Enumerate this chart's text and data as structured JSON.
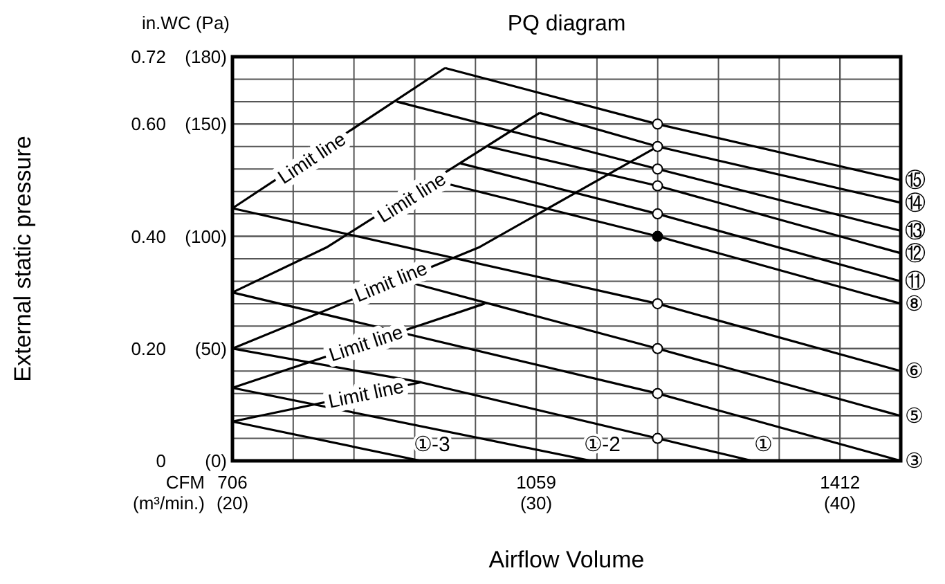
{
  "chart_data": {
    "type": "line",
    "title": "PQ diagram",
    "xlabel": "Airflow Volume",
    "ylabel": "External static pressure",
    "annotations": [
      "in.WC (Pa)",
      "CFM",
      "(m³/min.)",
      {
        "text": "Limit line",
        "x": 798,
        "y": 0.54
      },
      {
        "text": "Limit line",
        "x": 914,
        "y": 0.47
      },
      {
        "text": "Limit line",
        "x": 890,
        "y": 0.32
      },
      {
        "text": "Limit line",
        "x": 861,
        "y": 0.21
      },
      {
        "text": "Limit line",
        "x": 861,
        "y": 0.12
      }
    ],
    "xlim": [
      706,
      1482.6
    ],
    "ylim": [
      0,
      0.72
    ],
    "xticks": [
      706,
      1059,
      1412
    ],
    "x2lim": [
      20,
      42
    ],
    "x2ticks": [
      {
        "value": 20,
        "label": "(20)"
      },
      {
        "value": 22,
        "label": null
      },
      {
        "value": 24,
        "label": null
      },
      {
        "value": 26,
        "label": null
      },
      {
        "value": 28,
        "label": null
      },
      {
        "value": 30,
        "label": "(30)"
      },
      {
        "value": 32,
        "label": null
      },
      {
        "value": 34,
        "label": null
      },
      {
        "value": 36,
        "label": null
      },
      {
        "value": 38,
        "label": null
      },
      {
        "value": 40,
        "label": "(40)"
      },
      {
        "value": 42,
        "label": null
      }
    ],
    "yticks": [
      {
        "value": 0,
        "label": "0"
      },
      {
        "value": 0.04,
        "label": null
      },
      {
        "value": 0.08,
        "label": null
      },
      {
        "value": 0.12,
        "label": null
      },
      {
        "value": 0.16,
        "label": null
      },
      {
        "value": 0.2,
        "label": "0.20"
      },
      {
        "value": 0.24,
        "label": null
      },
      {
        "value": 0.28,
        "label": null
      },
      {
        "value": 0.32,
        "label": null
      },
      {
        "value": 0.36,
        "label": null
      },
      {
        "value": 0.4,
        "label": "0.40"
      },
      {
        "value": 0.44,
        "label": null
      },
      {
        "value": 0.48,
        "label": null
      },
      {
        "value": 0.52,
        "label": null
      },
      {
        "value": 0.56,
        "label": null
      },
      {
        "value": 0.6,
        "label": "0.60"
      },
      {
        "value": 0.64,
        "label": null
      },
      {
        "value": 0.68,
        "label": null
      },
      {
        "value": 0.72,
        "label": "0.72"
      }
    ],
    "y2lim": [
      0,
      180
    ],
    "y2ticks": [
      {
        "value": 0,
        "label": "(0)"
      },
      {
        "value": 50,
        "label": "(50)"
      },
      {
        "value": 100,
        "label": "(100)"
      },
      {
        "value": 150,
        "label": "(150)"
      },
      {
        "value": 180,
        "label": "(180)"
      }
    ],
    "grid": true,
    "series": [
      {
        "name": "⑮",
        "color": "#000000",
        "x": [
          953,
          1200,
          1482.6
        ],
        "values": [
          0.7,
          0.6,
          0.5
        ]
      },
      {
        "name": "⑭",
        "color": "#000000",
        "x": [
          1063,
          1200,
          1482.6
        ],
        "values": [
          0.62,
          0.56,
          0.46
        ]
      },
      {
        "name": "⑬",
        "color": "#000000",
        "x": [
          897,
          1200,
          1482.6
        ],
        "values": [
          0.64,
          0.52,
          0.41
        ]
      },
      {
        "name": "⑫",
        "color": "#000000",
        "x": [
          1003,
          1200,
          1482.6
        ],
        "values": [
          0.56,
          0.49,
          0.37
        ]
      },
      {
        "name": "⑪",
        "color": "#000000",
        "x": [
          971,
          1200,
          1482.6
        ],
        "values": [
          0.53,
          0.44,
          0.32
        ]
      },
      {
        "name": "⑧",
        "color": "#000000",
        "x": [
          939,
          1200,
          1482.6
        ],
        "values": [
          0.5,
          0.4,
          0.28
        ]
      },
      {
        "name": "⑥",
        "color": "#000000",
        "x": [
          706,
          1200,
          1482.6
        ],
        "values": [
          0.45,
          0.28,
          0.16
        ]
      },
      {
        "name": "⑤",
        "color": "#000000",
        "x": [
          907,
          1200,
          1482.6
        ],
        "values": [
          0.32,
          0.2,
          0.08
        ]
      },
      {
        "name": "③",
        "color": "#000000",
        "x": [
          706,
          1200,
          1482.6
        ],
        "values": [
          0.3,
          0.12,
          0
        ]
      },
      {
        "name": "①",
        "color": "#000000",
        "x": [
          706,
          925,
          1200,
          1310
        ],
        "values": [
          0.2,
          0.14,
          0.04,
          0
        ]
      },
      {
        "name": "①-2",
        "color": "#000000",
        "x": [
          706,
          1123
        ],
        "values": [
          0.13,
          0
        ]
      },
      {
        "name": "①-3",
        "color": "#000000",
        "x": [
          706,
          925
        ],
        "values": [
          0.07,
          0
        ]
      },
      {
        "color": "#000000",
        "x": [
          706,
          953
        ],
        "values": [
          0.45,
          0.7
        ]
      },
      {
        "color": "#000000",
        "x": [
          706,
          815,
          939,
          1063
        ],
        "values": [
          0.3,
          0.38,
          0.5,
          0.62
        ]
      },
      {
        "color": "#000000",
        "x": [
          706,
          992,
          1200
        ],
        "values": [
          0.2,
          0.38,
          0.56
        ]
      },
      {
        "color": "#000000",
        "x": [
          706,
          999
        ],
        "values": [
          0.13,
          0.28
        ]
      },
      {
        "color": "#000000",
        "x": [
          706,
          925
        ],
        "values": [
          0.07,
          0.14
        ]
      },
      {
        "type": "scatter",
        "marker": "circle",
        "color": "#ffffff",
        "x": [
          1200,
          1200,
          1200,
          1200,
          1200,
          1200,
          1200,
          1200,
          1200
        ],
        "values": [
          0.6,
          0.56,
          0.52,
          0.49,
          0.44,
          0.28,
          0.2,
          0.12,
          0.04
        ]
      },
      {
        "type": "scatter",
        "marker": "circle",
        "color": "#000000",
        "x": [
          1200
        ],
        "values": [
          0.4
        ]
      }
    ]
  }
}
